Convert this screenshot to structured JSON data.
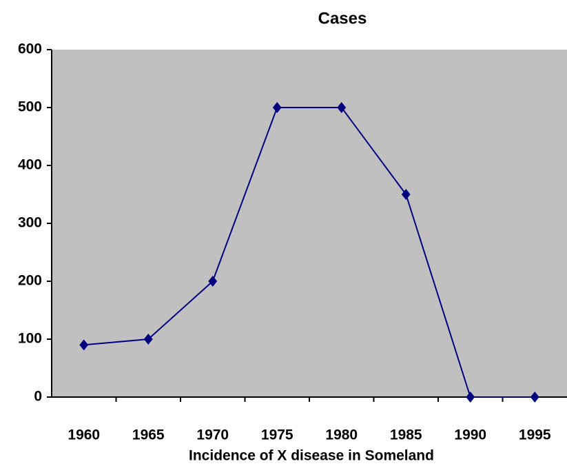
{
  "chart_data": {
    "type": "line",
    "title": "Cases",
    "x_label": "Incidence of X disease in Someland",
    "categories": [
      "1960",
      "1965",
      "1970",
      "1975",
      "1980",
      "1985",
      "1990",
      "1995"
    ],
    "series": [
      {
        "name": "Cases",
        "color": "#000080",
        "values": [
          90,
          100,
          200,
          500,
          500,
          350,
          0,
          0
        ]
      }
    ],
    "ylim": [
      0,
      600
    ],
    "yticks": [
      0,
      100,
      200,
      300,
      400,
      500,
      600
    ],
    "grid": false,
    "background": "#c0c0c0"
  }
}
